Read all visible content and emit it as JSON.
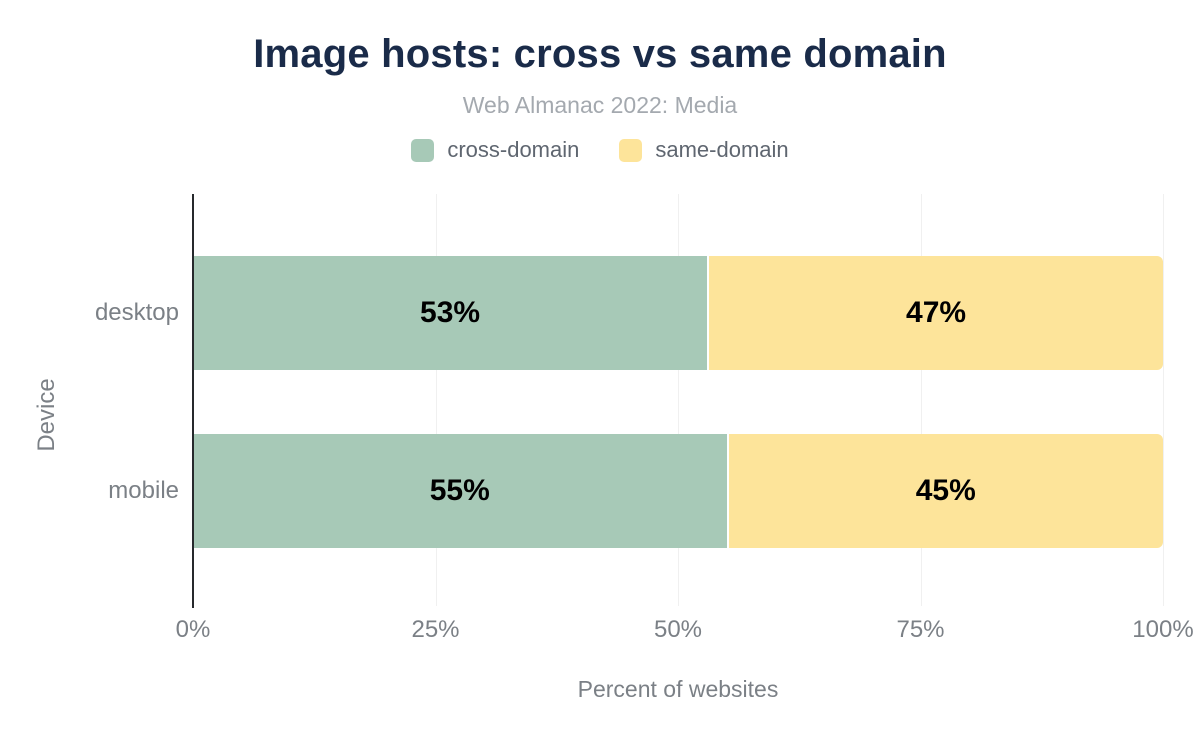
{
  "chart_data": {
    "type": "bar",
    "orientation": "horizontal",
    "stacked": true,
    "title": "Image hosts: cross vs same domain",
    "subtitle": "Web Almanac 2022: Media",
    "categories": [
      "desktop",
      "mobile"
    ],
    "series": [
      {
        "name": "cross-domain",
        "color": "#a7c9b7",
        "values": [
          53,
          55
        ],
        "labels": [
          "53%",
          "55%"
        ]
      },
      {
        "name": "same-domain",
        "color": "#fde49a",
        "values": [
          47,
          45
        ],
        "labels": [
          "47%",
          "45%"
        ]
      }
    ],
    "xlabel": "Percent of websites",
    "ylabel": "Device",
    "xlim": [
      0,
      100
    ],
    "x_ticks": [
      "0%",
      "25%",
      "50%",
      "75%",
      "100%"
    ],
    "x_tick_values": [
      0,
      25,
      50,
      75,
      100
    ],
    "grid": "vertical",
    "legend_position": "top"
  },
  "colors": {
    "background": "#ffffff",
    "title_text": "#1a2b49",
    "subtitle_text": "#a4a9af",
    "legend_text": "#5f6670",
    "axis_text": "#7b8086",
    "bar_label_text": "#000000",
    "axis_line": "#26292c",
    "gridline": "#f0f0f0"
  }
}
